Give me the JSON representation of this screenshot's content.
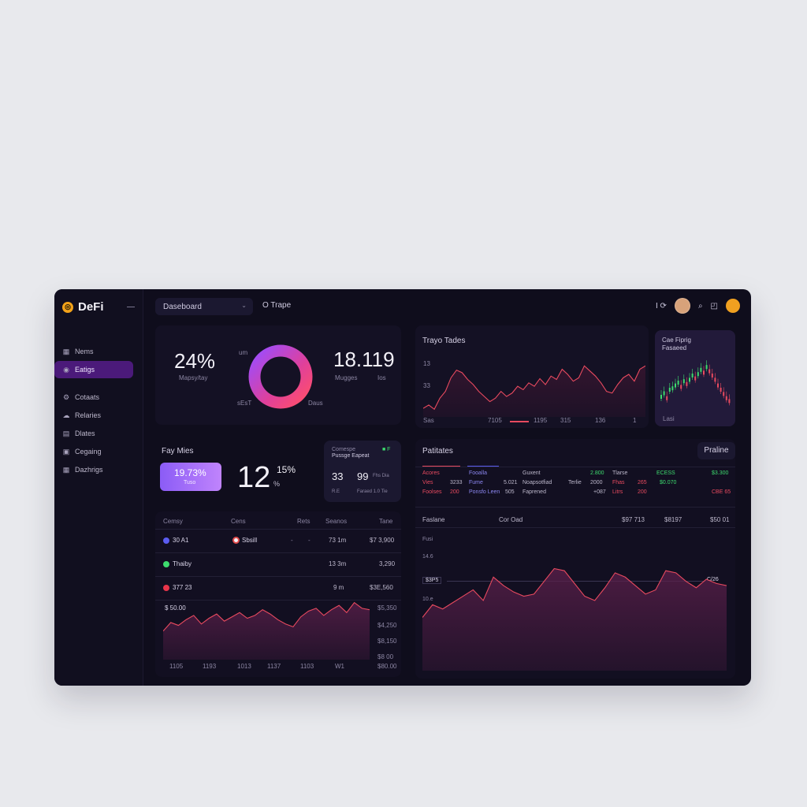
{
  "app": {
    "name": "DeFi"
  },
  "sidebar": {
    "items": [
      {
        "label": "Nems",
        "icon": "grid-icon"
      },
      {
        "label": "Eatigs",
        "icon": "circle-icon",
        "active": true
      },
      {
        "label": "Cotaats",
        "icon": "gear-icon"
      },
      {
        "label": "Relaries",
        "icon": "cloud-icon"
      },
      {
        "label": "Dlates",
        "icon": "doc-icon"
      },
      {
        "label": "Cegaing",
        "icon": "lock-icon"
      },
      {
        "label": "Dazhrigs",
        "icon": "grid-icon"
      }
    ]
  },
  "topbar": {
    "dropdown": "Daseboard",
    "tab": "O Trape",
    "icon_text": "I ⟳"
  },
  "stats": {
    "pct_value": "24%",
    "pct_label": "Mapsy/tay",
    "donut_label_top": "um",
    "donut_label_left": "sEsT",
    "donut_label_right": "Daus",
    "num_value": "18.119",
    "num_label_a": "Mugges",
    "num_label_b": "Ios"
  },
  "trades": {
    "title": "Trayo Tades",
    "ylabels": [
      "13",
      "33",
      "Sas"
    ],
    "xlabels": [
      "7105",
      "1195",
      "315",
      "136",
      "1"
    ]
  },
  "mini": {
    "title": "Cae Fiprig",
    "subtitle": "Fasaeed",
    "xlabel": "Lasi"
  },
  "fees": {
    "title": "Fay Mies",
    "badge_value": "19.73%",
    "badge_sub": "Tuso",
    "value": "12",
    "value_sup": "15%",
    "value_sub": "%"
  },
  "small_card": {
    "label": "Comespe",
    "label2": "Pussge Eapeat",
    "flag": "■ F",
    "v1": "33",
    "v2": "99",
    "v2_sub": "Fhs Dia",
    "foot1": "R.E",
    "foot2": "Faraed 1.0 Tie"
  },
  "table": {
    "headers": [
      "Cemsy",
      "Cens",
      "Rets",
      "Seanos",
      "Tane"
    ],
    "rows": [
      {
        "dot": "#5b5cf0",
        "name": "30 A1",
        "coin_dot": "#e14b4b",
        "coin": "Sbsill",
        "r": "-",
        "s": "-",
        "mid": "73 1m",
        "val": "$7 3,900"
      },
      {
        "dot": "#3ddc6e",
        "name": "Thaiby",
        "coin_dot": "",
        "coin": "",
        "r": "",
        "s": "",
        "mid": "13 3m",
        "val": "3,290"
      },
      {
        "dot": "#e8344a",
        "name": "377 23",
        "coin_dot": "",
        "coin": "",
        "r": "",
        "s": "",
        "mid": "9 m",
        "val": "$3E,560"
      }
    ],
    "chart_top_label": "$ 50.00",
    "chart_y": [
      "$5,350",
      "$4,250",
      "$8,150",
      "$8 00",
      "$80.00"
    ],
    "chart_x": [
      "1105",
      "1193",
      "1013",
      "1137",
      "1103",
      "W1"
    ]
  },
  "patients": {
    "title": "Patitates",
    "button": "Praline",
    "rows": [
      [
        "Acores",
        "Fooalla",
        "Guxent",
        "2.800",
        "Tlarse",
        "ECESS",
        "$3.300"
      ],
      [
        "Vies",
        "3233",
        "Fume",
        "5.021",
        "Noapsotfiad",
        "Terlie",
        "2000",
        "Fhas",
        "265",
        "$0.070"
      ],
      [
        "Foolses",
        "200",
        "Ponsfo Leen",
        "505",
        "Faprened",
        "+087",
        "Litrs",
        "200",
        "CBE 65"
      ]
    ]
  },
  "big_chart": {
    "head": [
      "Faslane",
      "Cor Oad",
      "$97 713",
      "$8197",
      "$50 01"
    ],
    "label": "Fusi",
    "y1": "14.6",
    "tag_left": "$3P5",
    "tag_right": "C/26",
    "y2": "10.e"
  },
  "chart_data": [
    {
      "type": "line",
      "title": "Trayo Tades",
      "x": [
        0,
        1,
        2,
        3,
        4,
        5,
        6,
        7,
        8,
        9,
        10,
        11,
        12,
        13,
        14,
        15,
        16,
        17,
        18,
        19,
        20,
        21,
        22,
        23,
        24,
        25,
        26,
        27,
        28,
        29,
        30,
        31,
        32,
        33,
        34,
        35,
        36,
        37,
        38,
        39,
        40
      ],
      "values": [
        10,
        14,
        9,
        22,
        30,
        46,
        55,
        52,
        44,
        38,
        30,
        24,
        18,
        22,
        30,
        24,
        28,
        36,
        32,
        40,
        36,
        45,
        38,
        48,
        44,
        56,
        50,
        42,
        46,
        60,
        54,
        48,
        40,
        30,
        28,
        38,
        46,
        50,
        42,
        56,
        60
      ]
    },
    {
      "type": "area",
      "title": "",
      "values": [
        40,
        52,
        48,
        56,
        62,
        50,
        58,
        64,
        54,
        60,
        66,
        58,
        62,
        70,
        64,
        56,
        50,
        46,
        60,
        68,
        72,
        62,
        70,
        76,
        66,
        80,
        72,
        70
      ]
    },
    {
      "type": "area",
      "title": "",
      "values": [
        50,
        62,
        58,
        64,
        70,
        76,
        66,
        88,
        80,
        74,
        70,
        72,
        84,
        96,
        94,
        82,
        70,
        66,
        78,
        92,
        88,
        80,
        72,
        76,
        94,
        92,
        84,
        78,
        86,
        82,
        80
      ]
    }
  ]
}
